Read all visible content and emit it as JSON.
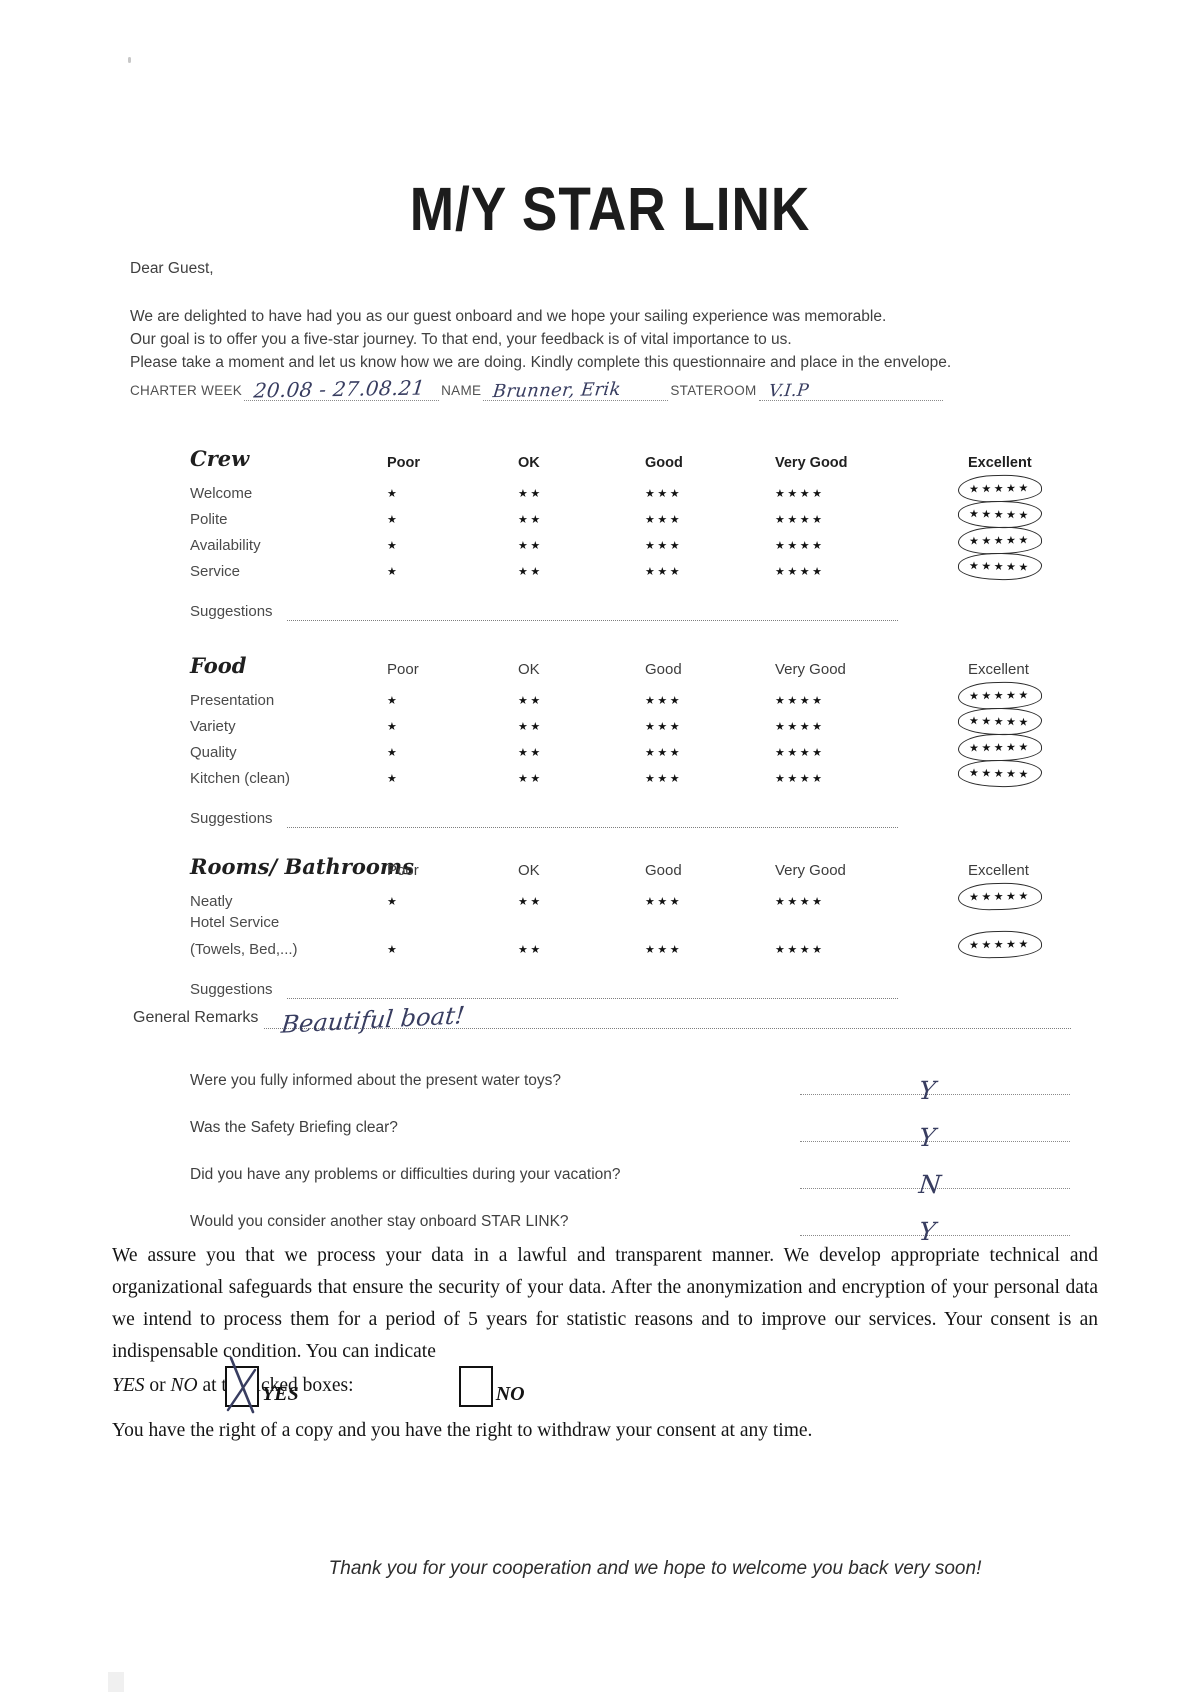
{
  "page": {
    "title": "M/Y STAR LINK",
    "greeting": "Dear Guest,",
    "intro": [
      "We are delighted to have had you as our guest onboard and we hope your sailing experience was memorable.",
      "Our goal is to offer you a five-star journey. To that end, your feedback is of vital importance to us.",
      "Please take a moment and let us know how we are doing. Kindly complete this questionnaire and place in the envelope."
    ],
    "footer": "Thank you for your cooperation and we hope to welcome you back very soon!"
  },
  "charter": {
    "week_label": "CHARTER WEEK",
    "week_value": "20.08 - 27.08.21",
    "name_label": "NAME",
    "name_value": "Brunner, Erik",
    "stateroom_label": "STATEROOM",
    "stateroom_value": "V.I.P"
  },
  "rating_scale": [
    "Poor",
    "OK",
    "Good",
    "Very Good",
    "Excellent"
  ],
  "sections": [
    {
      "heading": "Crew",
      "rows": [
        {
          "label": "Welcome",
          "rating": "Excellent"
        },
        {
          "label": "Polite",
          "rating": "Excellent"
        },
        {
          "label": "Availability",
          "rating": "Excellent"
        },
        {
          "label": "Service",
          "rating": "Excellent"
        }
      ],
      "suggestions_label": "Suggestions",
      "suggestions_value": ""
    },
    {
      "heading": "Food",
      "rows": [
        {
          "label": "Presentation",
          "rating": "Excellent"
        },
        {
          "label": "Variety",
          "rating": "Excellent"
        },
        {
          "label": "Quality",
          "rating": "Excellent"
        },
        {
          "label": "Kitchen (clean)",
          "rating": "Excellent"
        }
      ],
      "suggestions_label": "Suggestions",
      "suggestions_value": ""
    },
    {
      "heading": "Rooms/ Bathrooms",
      "rows": [
        {
          "label": "Neatly",
          "rating": "Excellent"
        },
        {
          "label": "Hotel Service",
          "sublabel": "(Towels, Bed,...)",
          "rating": "Excellent"
        }
      ],
      "suggestions_label": "Suggestions",
      "suggestions_value": ""
    }
  ],
  "general_remarks": {
    "label": "General Remarks",
    "value": "Beautiful boat!"
  },
  "questions": [
    {
      "text": "Were you fully informed about the present water toys?",
      "answer": "Y"
    },
    {
      "text": "Was the Safety Briefing clear?",
      "answer": "Y"
    },
    {
      "text": "Did you have any problems or difficulties during your vacation?",
      "answer": "N"
    },
    {
      "text": "Would you consider another stay onboard STAR LINK?",
      "answer": "Y"
    }
  ],
  "consent": {
    "paragraph": "We assure you that we process your data in a lawful and transparent manner. We develop appropriate technical and organizational safeguards that ensure the security of your data. After the anonymization and encryption of your personal data we intend to process them for a period of 5 years for statistic reasons and to improve our services. Your consent is an indispensable condition. You can indicate",
    "yes_word": "YES",
    "or_word": " or ",
    "no_word": "NO",
    "tail": " at the ticked boxes:",
    "options": [
      {
        "label": "YES",
        "checked": true
      },
      {
        "label": "NO",
        "checked": false
      }
    ],
    "rights": "You have the right of a copy and you have the right to withdraw your consent at any time."
  },
  "icons": {
    "star": "★",
    "check": "✗"
  },
  "ink_color": "#383d60"
}
